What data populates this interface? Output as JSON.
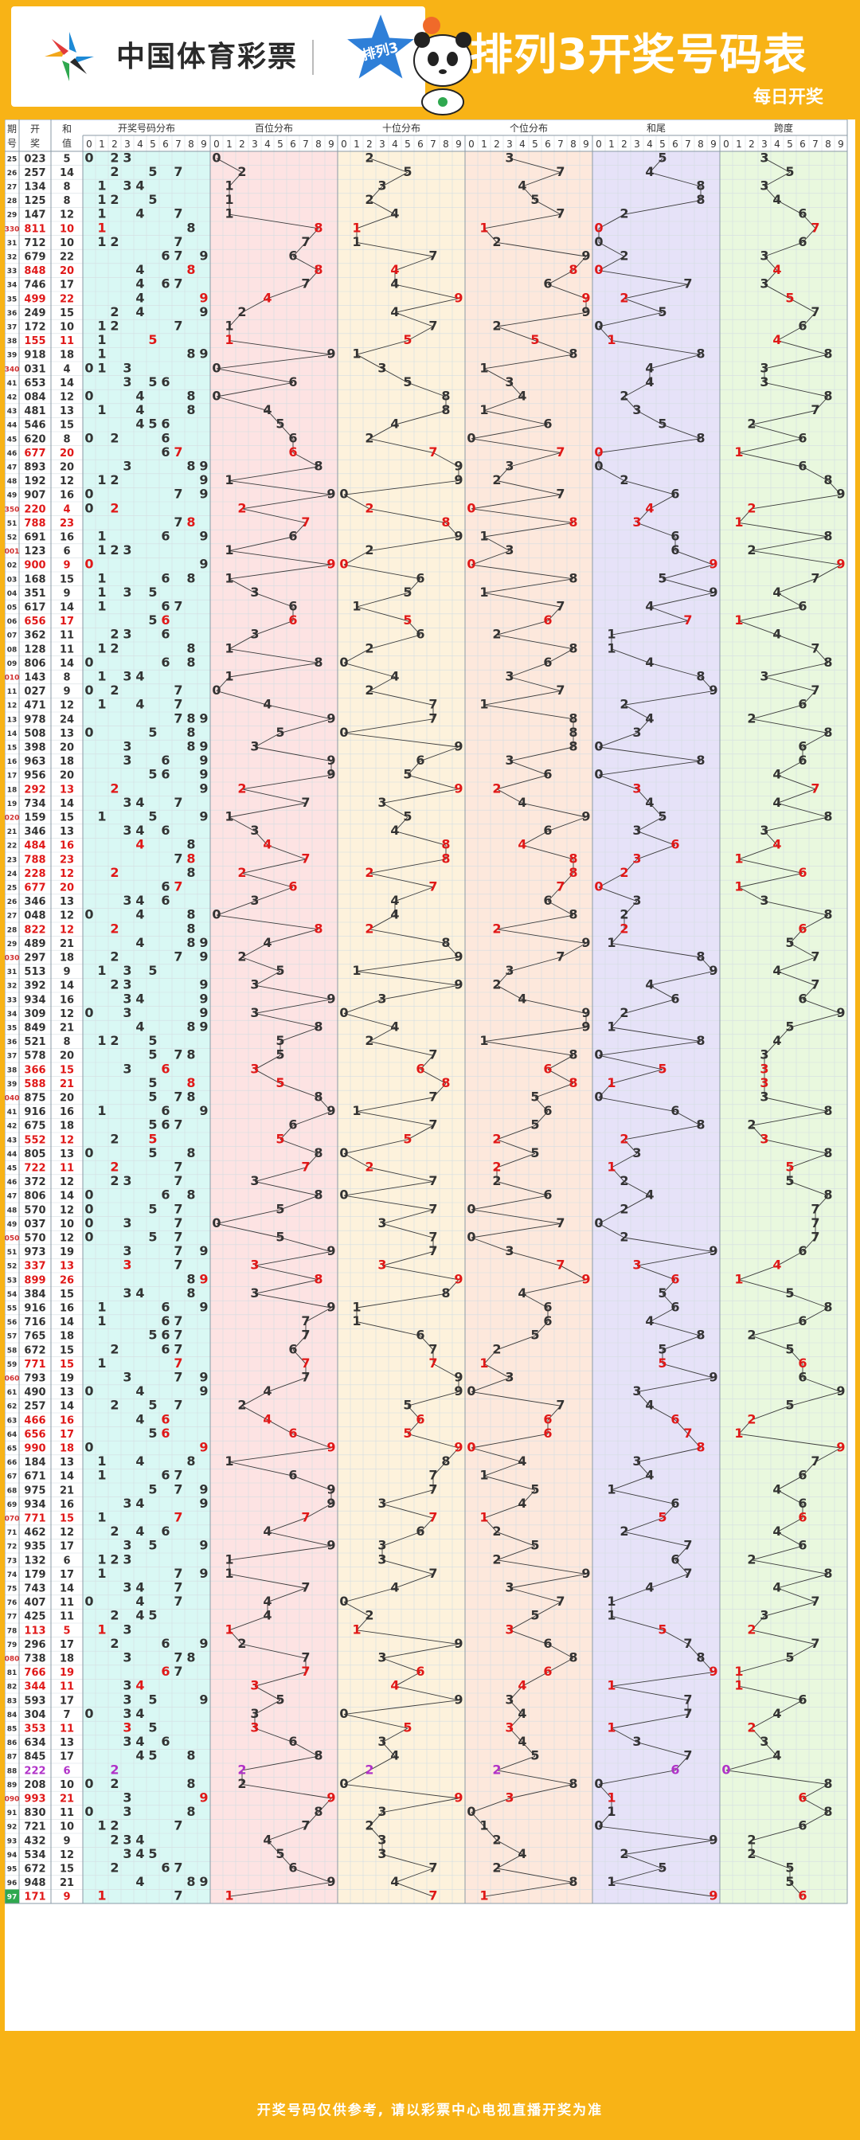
{
  "header": {
    "org_name": "中国体育彩票",
    "badge_text": "排列3",
    "title": "排列3开奖号码表",
    "subtitle": "每日开奖"
  },
  "footer": {
    "disclaimer": "开奖号码仅供参考, 请以彩票中心电视直播开奖为准"
  },
  "colors": {
    "frame": "#f8b316",
    "dist_bg": "#d9f8f4",
    "hundreds_bg": "#fde3e3",
    "tens_bg": "#fdf2dc",
    "units_bg": "#fde8dc",
    "tail_bg": "#e6e2f8",
    "span_bg": "#e9f8de",
    "hot_red": "#e01818",
    "triple_purple": "#b032c8",
    "digit_gray": "#333333"
  },
  "icons": {
    "lottery_logo": "pinwheel-logo-icon",
    "mascot": "panda-mascot-icon"
  },
  "chart_data": {
    "type": "table",
    "columns": [
      "期号",
      "开奖",
      "和值",
      "开奖号码分布",
      "百位分布",
      "十位分布",
      "个位分布",
      "和尾",
      "跨度"
    ],
    "col_header_lines": [
      [
        "期",
        "号"
      ],
      [
        "开",
        "奖"
      ],
      [
        "和",
        "值"
      ]
    ],
    "group_headers": [
      "开奖号码分布",
      "百位分布",
      "十位分布",
      "个位分布",
      "和尾",
      "跨度"
    ],
    "digit_axis": [
      "0",
      "1",
      "2",
      "3",
      "4",
      "5",
      "6",
      "7",
      "8",
      "9"
    ],
    "rows": [
      {
        "p": "25",
        "d": "023",
        "s": "5"
      },
      {
        "p": "26",
        "d": "257",
        "s": "14"
      },
      {
        "p": "27",
        "d": "134",
        "s": "8"
      },
      {
        "p": "28",
        "d": "125",
        "s": "8"
      },
      {
        "p": "29",
        "d": "147",
        "s": "12"
      },
      {
        "p": "330",
        "d": "811",
        "s": "10"
      },
      {
        "p": "31",
        "d": "712",
        "s": "10"
      },
      {
        "p": "32",
        "d": "679",
        "s": "22"
      },
      {
        "p": "33",
        "d": "848",
        "s": "20"
      },
      {
        "p": "34",
        "d": "746",
        "s": "17"
      },
      {
        "p": "35",
        "d": "499",
        "s": "22"
      },
      {
        "p": "36",
        "d": "249",
        "s": "15"
      },
      {
        "p": "37",
        "d": "172",
        "s": "10"
      },
      {
        "p": "38",
        "d": "155",
        "s": "11"
      },
      {
        "p": "39",
        "d": "918",
        "s": "18"
      },
      {
        "p": "340",
        "d": "031",
        "s": "4"
      },
      {
        "p": "41",
        "d": "653",
        "s": "14"
      },
      {
        "p": "42",
        "d": "084",
        "s": "12"
      },
      {
        "p": "43",
        "d": "481",
        "s": "13"
      },
      {
        "p": "44",
        "d": "546",
        "s": "15"
      },
      {
        "p": "45",
        "d": "620",
        "s": "8"
      },
      {
        "p": "46",
        "d": "677",
        "s": "20"
      },
      {
        "p": "47",
        "d": "893",
        "s": "20"
      },
      {
        "p": "48",
        "d": "192",
        "s": "12"
      },
      {
        "p": "49",
        "d": "907",
        "s": "16"
      },
      {
        "p": "350",
        "d": "220",
        "s": "4"
      },
      {
        "p": "51",
        "d": "788",
        "s": "23"
      },
      {
        "p": "52",
        "d": "691",
        "s": "16"
      },
      {
        "p": "001",
        "d": "123",
        "s": "6"
      },
      {
        "p": "02",
        "d": "900",
        "s": "9"
      },
      {
        "p": "03",
        "d": "168",
        "s": "15"
      },
      {
        "p": "04",
        "d": "351",
        "s": "9"
      },
      {
        "p": "05",
        "d": "617",
        "s": "14"
      },
      {
        "p": "06",
        "d": "656",
        "s": "17"
      },
      {
        "p": "07",
        "d": "362",
        "s": "11"
      },
      {
        "p": "08",
        "d": "128",
        "s": "11"
      },
      {
        "p": "09",
        "d": "806",
        "s": "14"
      },
      {
        "p": "010",
        "d": "143",
        "s": "8"
      },
      {
        "p": "11",
        "d": "027",
        "s": "9"
      },
      {
        "p": "12",
        "d": "471",
        "s": "12"
      },
      {
        "p": "13",
        "d": "978",
        "s": "24"
      },
      {
        "p": "14",
        "d": "508",
        "s": "13"
      },
      {
        "p": "15",
        "d": "398",
        "s": "20"
      },
      {
        "p": "16",
        "d": "963",
        "s": "18"
      },
      {
        "p": "17",
        "d": "956",
        "s": "20"
      },
      {
        "p": "18",
        "d": "292",
        "s": "13"
      },
      {
        "p": "19",
        "d": "734",
        "s": "14"
      },
      {
        "p": "020",
        "d": "159",
        "s": "15"
      },
      {
        "p": "21",
        "d": "346",
        "s": "13"
      },
      {
        "p": "22",
        "d": "484",
        "s": "16"
      },
      {
        "p": "23",
        "d": "788",
        "s": "23"
      },
      {
        "p": "24",
        "d": "228",
        "s": "12"
      },
      {
        "p": "25",
        "d": "677",
        "s": "20"
      },
      {
        "p": "26",
        "d": "346",
        "s": "13"
      },
      {
        "p": "27",
        "d": "048",
        "s": "12"
      },
      {
        "p": "28",
        "d": "822",
        "s": "12"
      },
      {
        "p": "29",
        "d": "489",
        "s": "21"
      },
      {
        "p": "030",
        "d": "297",
        "s": "18"
      },
      {
        "p": "31",
        "d": "513",
        "s": "9"
      },
      {
        "p": "32",
        "d": "392",
        "s": "14"
      },
      {
        "p": "33",
        "d": "934",
        "s": "16"
      },
      {
        "p": "34",
        "d": "309",
        "s": "12"
      },
      {
        "p": "35",
        "d": "849",
        "s": "21"
      },
      {
        "p": "36",
        "d": "521",
        "s": "8"
      },
      {
        "p": "37",
        "d": "578",
        "s": "20"
      },
      {
        "p": "38",
        "d": "366",
        "s": "15"
      },
      {
        "p": "39",
        "d": "588",
        "s": "21"
      },
      {
        "p": "040",
        "d": "875",
        "s": "20"
      },
      {
        "p": "41",
        "d": "916",
        "s": "16"
      },
      {
        "p": "42",
        "d": "675",
        "s": "18"
      },
      {
        "p": "43",
        "d": "552",
        "s": "12"
      },
      {
        "p": "44",
        "d": "805",
        "s": "13"
      },
      {
        "p": "45",
        "d": "722",
        "s": "11"
      },
      {
        "p": "46",
        "d": "372",
        "s": "12"
      },
      {
        "p": "47",
        "d": "806",
        "s": "14"
      },
      {
        "p": "48",
        "d": "570",
        "s": "12"
      },
      {
        "p": "49",
        "d": "037",
        "s": "10"
      },
      {
        "p": "050",
        "d": "570",
        "s": "12"
      },
      {
        "p": "51",
        "d": "973",
        "s": "19"
      },
      {
        "p": "52",
        "d": "337",
        "s": "13"
      },
      {
        "p": "53",
        "d": "899",
        "s": "26"
      },
      {
        "p": "54",
        "d": "384",
        "s": "15"
      },
      {
        "p": "55",
        "d": "916",
        "s": "16"
      },
      {
        "p": "56",
        "d": "716",
        "s": "14"
      },
      {
        "p": "57",
        "d": "765",
        "s": "18"
      },
      {
        "p": "58",
        "d": "672",
        "s": "15"
      },
      {
        "p": "59",
        "d": "771",
        "s": "15"
      },
      {
        "p": "060",
        "d": "793",
        "s": "19"
      },
      {
        "p": "61",
        "d": "490",
        "s": "13"
      },
      {
        "p": "62",
        "d": "257",
        "s": "14"
      },
      {
        "p": "63",
        "d": "466",
        "s": "16"
      },
      {
        "p": "64",
        "d": "656",
        "s": "17"
      },
      {
        "p": "65",
        "d": "990",
        "s": "18"
      },
      {
        "p": "66",
        "d": "184",
        "s": "13"
      },
      {
        "p": "67",
        "d": "671",
        "s": "14"
      },
      {
        "p": "68",
        "d": "975",
        "s": "21"
      },
      {
        "p": "69",
        "d": "934",
        "s": "16"
      },
      {
        "p": "070",
        "d": "771",
        "s": "15"
      },
      {
        "p": "71",
        "d": "462",
        "s": "12"
      },
      {
        "p": "72",
        "d": "935",
        "s": "17"
      },
      {
        "p": "73",
        "d": "132",
        "s": "6"
      },
      {
        "p": "74",
        "d": "179",
        "s": "17"
      },
      {
        "p": "75",
        "d": "743",
        "s": "14"
      },
      {
        "p": "76",
        "d": "407",
        "s": "11"
      },
      {
        "p": "77",
        "d": "425",
        "s": "11"
      },
      {
        "p": "78",
        "d": "113",
        "s": "5"
      },
      {
        "p": "79",
        "d": "296",
        "s": "17"
      },
      {
        "p": "080",
        "d": "738",
        "s": "18"
      },
      {
        "p": "81",
        "d": "766",
        "s": "19"
      },
      {
        "p": "82",
        "d": "344",
        "s": "11"
      },
      {
        "p": "83",
        "d": "593",
        "s": "17"
      },
      {
        "p": "84",
        "d": "304",
        "s": "7"
      },
      {
        "p": "85",
        "d": "353",
        "s": "11"
      },
      {
        "p": "86",
        "d": "634",
        "s": "13"
      },
      {
        "p": "87",
        "d": "845",
        "s": "17"
      },
      {
        "p": "88",
        "d": "222",
        "s": "6"
      },
      {
        "p": "89",
        "d": "208",
        "s": "10"
      },
      {
        "p": "090",
        "d": "993",
        "s": "21"
      },
      {
        "p": "91",
        "d": "830",
        "s": "11"
      },
      {
        "p": "92",
        "d": "721",
        "s": "10"
      },
      {
        "p": "93",
        "d": "432",
        "s": "9"
      },
      {
        "p": "94",
        "d": "534",
        "s": "12"
      },
      {
        "p": "95",
        "d": "672",
        "s": "15"
      },
      {
        "p": "96",
        "d": "948",
        "s": "21"
      },
      {
        "p": "97",
        "d": "171",
        "s": "9"
      }
    ]
  }
}
